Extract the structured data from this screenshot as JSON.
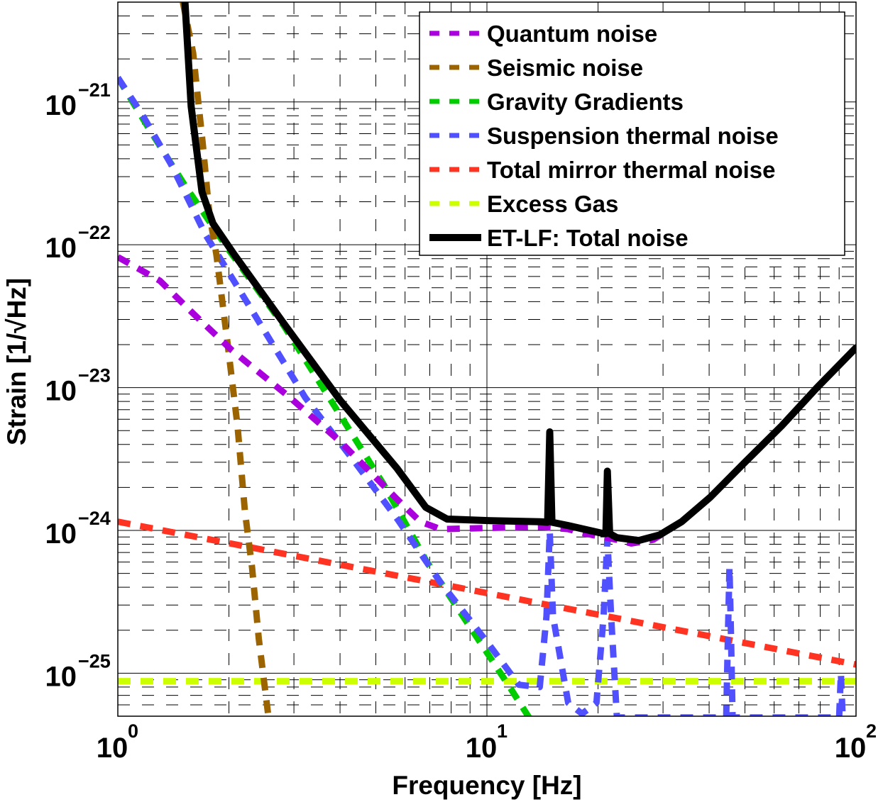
{
  "chart_data": {
    "type": "line",
    "title": "",
    "xlabel": "Frequency [Hz]",
    "ylabel": "Strain [1/√Hz]",
    "xscale": "log",
    "yscale": "log",
    "xlim": [
      1,
      100
    ],
    "ylim": [
      5e-26,
      5e-21
    ],
    "grid": true,
    "legend_position": "top-right",
    "x_ticks": [
      {
        "value": 1,
        "base": "10",
        "exp": "0"
      },
      {
        "value": 10,
        "base": "10",
        "exp": "1"
      },
      {
        "value": 100,
        "base": "10",
        "exp": "2"
      }
    ],
    "y_ticks": [
      {
        "value": 1e-21,
        "base": "10",
        "exp": "−21"
      },
      {
        "value": 1e-22,
        "base": "10",
        "exp": "−22"
      },
      {
        "value": 1e-23,
        "base": "10",
        "exp": "−23"
      },
      {
        "value": 1e-24,
        "base": "10",
        "exp": "−24"
      },
      {
        "value": 1e-25,
        "base": "10",
        "exp": "−25"
      }
    ],
    "series": [
      {
        "name": "Quantum noise",
        "color": "#aa00dd",
        "style": "dashed",
        "points": [
          [
            1.0,
            8.2e-23
          ],
          [
            1.3,
            5.6e-23
          ],
          [
            1.6,
            3.3e-23
          ],
          [
            2.04,
            1.82e-23
          ],
          [
            2.9,
            8.7e-24
          ],
          [
            4.0,
            4.2e-24
          ],
          [
            5.7,
            1.66e-24
          ],
          [
            6.6,
            1.15e-24
          ],
          [
            7.5,
            1.02e-24
          ],
          [
            10.2,
            1.04e-24
          ],
          [
            13.9,
            1.06e-24
          ],
          [
            16.6,
            1.02e-24
          ],
          [
            18.1,
            9.6e-25
          ],
          [
            22.5,
            8.6e-25
          ],
          [
            24.6,
            8.1e-25
          ],
          [
            28.2,
            8.6e-25
          ],
          [
            33.7,
            1.15e-24
          ],
          [
            40.2,
            1.7e-24
          ],
          [
            50,
            3e-24
          ],
          [
            62.9,
            5.4e-24
          ],
          [
            78.4,
            1e-23
          ],
          [
            100,
            1.9e-23
          ]
        ]
      },
      {
        "name": "Seismic noise",
        "color": "#9c6400",
        "style": "dashed",
        "points": [
          [
            1.5,
            5e-21
          ],
          [
            1.6,
            2.2e-21
          ],
          [
            1.7,
            5e-22
          ],
          [
            1.77,
            1.66e-22
          ],
          [
            1.85,
            8.5e-23
          ],
          [
            1.98,
            2.1e-23
          ],
          [
            2.11,
            5.4e-24
          ],
          [
            2.21,
            1.35e-24
          ],
          [
            2.31,
            5.5e-25
          ],
          [
            2.41,
            1.74e-25
          ],
          [
            2.56,
            4.9e-26
          ]
        ]
      },
      {
        "name": "Gravity Gradients",
        "color": "#00cc00",
        "style": "dashed",
        "points": [
          [
            1.0,
            1.48e-21
          ],
          [
            1.21,
            6.6e-22
          ],
          [
            1.52,
            2.6e-22
          ],
          [
            1.98,
            9.5e-23
          ],
          [
            2.82,
            2.7e-23
          ],
          [
            3.84,
            7.6e-24
          ],
          [
            5.25,
            2.1e-24
          ],
          [
            6.83,
            6.2e-25
          ],
          [
            8.9,
            2.2e-25
          ],
          [
            11.6,
            7.8e-26
          ],
          [
            13.0,
            4.9e-26
          ]
        ]
      },
      {
        "name": "Suspension thermal noise",
        "color": "#5050ff",
        "style": "dashed",
        "points": [
          [
            1.0,
            1.48e-21
          ],
          [
            1.16,
            8.3e-22
          ],
          [
            1.39,
            3.7e-22
          ],
          [
            1.73,
            1.17e-22
          ],
          [
            2.26,
            3.8e-23
          ],
          [
            3.22,
            8.5e-24
          ],
          [
            4.39,
            3e-24
          ],
          [
            5.72,
            1.2e-24
          ],
          [
            7.45,
            4.4e-25
          ],
          [
            10.2,
            1.55e-25
          ],
          [
            12.2,
            8.3e-26
          ],
          [
            13.9,
            8e-26
          ],
          [
            14.5,
            2.5e-25
          ],
          [
            14.8,
            9.8e-25
          ],
          [
            15.1,
            2.5e-25
          ],
          [
            16.6,
            6.2e-26
          ],
          [
            18.1,
            5.2e-26
          ],
          [
            19.8,
            6.2e-26
          ],
          [
            20.7,
            2.5e-25
          ],
          [
            21.2,
            8.7e-25
          ],
          [
            21.7,
            2.5e-25
          ],
          [
            22.5,
            4.9e-26
          ],
          [
            44.5,
            4.9e-26
          ],
          [
            45.0,
            2e-25
          ],
          [
            45.4,
            5.5e-25
          ],
          [
            45.8,
            2e-25
          ],
          [
            46.3,
            4.9e-26
          ],
          [
            90.0,
            4.9e-26
          ],
          [
            91.0,
            1e-25
          ],
          [
            92.0,
            4.9e-26
          ]
        ]
      },
      {
        "name": "Total mirror thermal noise",
        "color": "#ff3322",
        "style": "dashed",
        "points": [
          [
            1.0,
            1.15e-24
          ],
          [
            100,
            1.15e-25
          ]
        ]
      },
      {
        "name": "Excess Gas",
        "color": "#ccff00",
        "style": "dashed",
        "points": [
          [
            1.0,
            8.8e-26
          ],
          [
            100,
            8.8e-26
          ]
        ]
      },
      {
        "name": "ET-LF: Total noise",
        "color": "#000000",
        "style": "solid",
        "points": [
          [
            1.52,
            5e-21
          ],
          [
            1.58,
            9.3e-22
          ],
          [
            1.69,
            2.35e-22
          ],
          [
            1.81,
            1.41e-22
          ],
          [
            2.07,
            8.5e-23
          ],
          [
            2.82,
            2.8e-23
          ],
          [
            4.01,
            8.1e-24
          ],
          [
            5.72,
            2.7e-24
          ],
          [
            6.83,
            1.45e-24
          ],
          [
            7.8,
            1.2e-24
          ],
          [
            10.2,
            1.17e-24
          ],
          [
            13.9,
            1.15e-24
          ],
          [
            14.6,
            1.14e-24
          ],
          [
            14.8,
            4.9e-24
          ],
          [
            15.0,
            1.14e-24
          ],
          [
            16.6,
            1.08e-24
          ],
          [
            20.7,
            9.5e-25
          ],
          [
            21.0,
            9.5e-25
          ],
          [
            21.2,
            2.6e-24
          ],
          [
            21.5,
            9.5e-25
          ],
          [
            22.5,
            8.9e-25
          ],
          [
            25.8,
            8.5e-25
          ],
          [
            29.4,
            9.3e-25
          ],
          [
            33.7,
            1.15e-24
          ],
          [
            40.2,
            1.7e-24
          ],
          [
            50,
            3e-24
          ],
          [
            62.9,
            5.4e-24
          ],
          [
            78.4,
            1e-23
          ],
          [
            100,
            1.9e-23
          ]
        ]
      }
    ]
  }
}
